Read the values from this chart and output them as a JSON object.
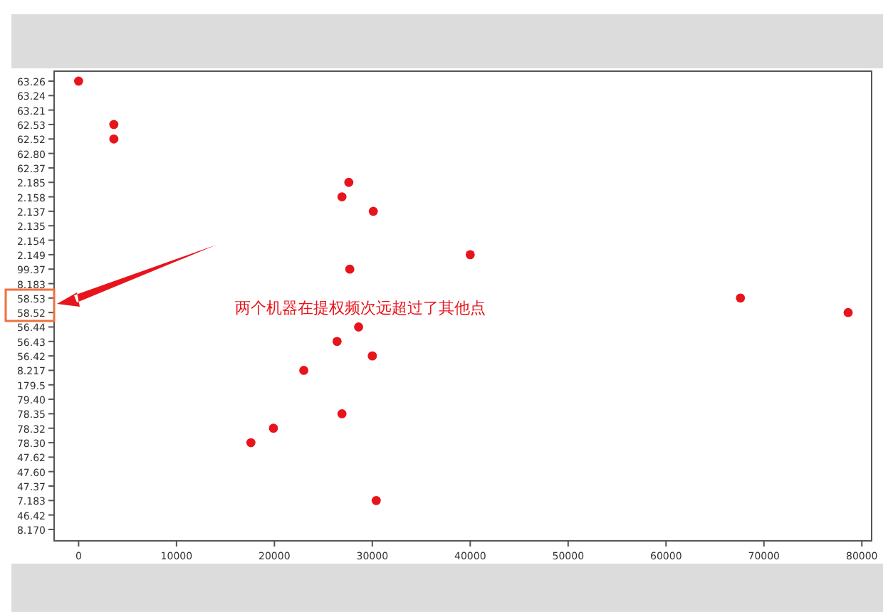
{
  "chart_data": {
    "type": "scatter",
    "orientation": "horizontal",
    "marker": "circle",
    "color": "#e8141c",
    "categories": [
      "63.26",
      "63.24",
      "63.21",
      "62.53",
      "62.52",
      "62.80",
      "62.37",
      "2.185",
      "2.158",
      "2.137",
      "2.135",
      "2.154",
      "2.149",
      "99.37",
      "8.183",
      "58.53",
      "58.52",
      "56.44",
      "56.43",
      "56.42",
      "8.217",
      "179.5",
      "79.40",
      "78.35",
      "78.32",
      "78.30",
      "47.62",
      "47.60",
      "47.37",
      "7.183",
      "46.42",
      "8.170"
    ],
    "values": [
      0,
      null,
      null,
      3600,
      3600,
      null,
      null,
      27600,
      26900,
      30100,
      null,
      null,
      40000,
      27700,
      null,
      67600,
      78600,
      28600,
      26400,
      30000,
      23000,
      null,
      null,
      26900,
      19900,
      17600,
      null,
      null,
      null,
      30400,
      null,
      null
    ],
    "xlim": [
      -2500,
      81000
    ],
    "xticks": [
      0,
      10000,
      20000,
      30000,
      40000,
      50000,
      60000,
      70000,
      80000
    ],
    "annotations": [
      "两个机器在提权频次远超过了其他点"
    ]
  }
}
